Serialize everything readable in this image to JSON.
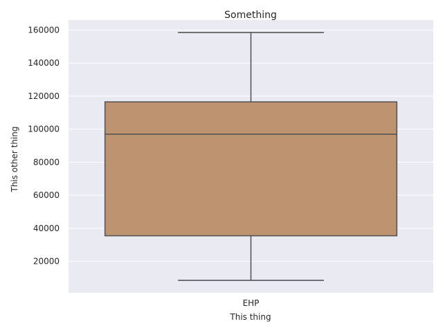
{
  "chart_data": {
    "type": "box",
    "title": "Something",
    "xlabel": "This thing",
    "ylabel": "This other thing",
    "categories": [
      "EHP"
    ],
    "boxes": [
      {
        "category": "EHP",
        "whisker_low": 8500,
        "q1": 35500,
        "median": 97000,
        "q3": 116500,
        "whisker_high": 158500
      }
    ],
    "ylim": [
      1000,
      166000
    ],
    "yticks": [
      20000,
      40000,
      60000,
      80000,
      100000,
      120000,
      140000,
      160000
    ],
    "grid": true,
    "colors": {
      "plot_background": "#eaeaf2",
      "grid": "#ffffff",
      "box_fill": "#bd9370",
      "line": "#555555"
    }
  }
}
